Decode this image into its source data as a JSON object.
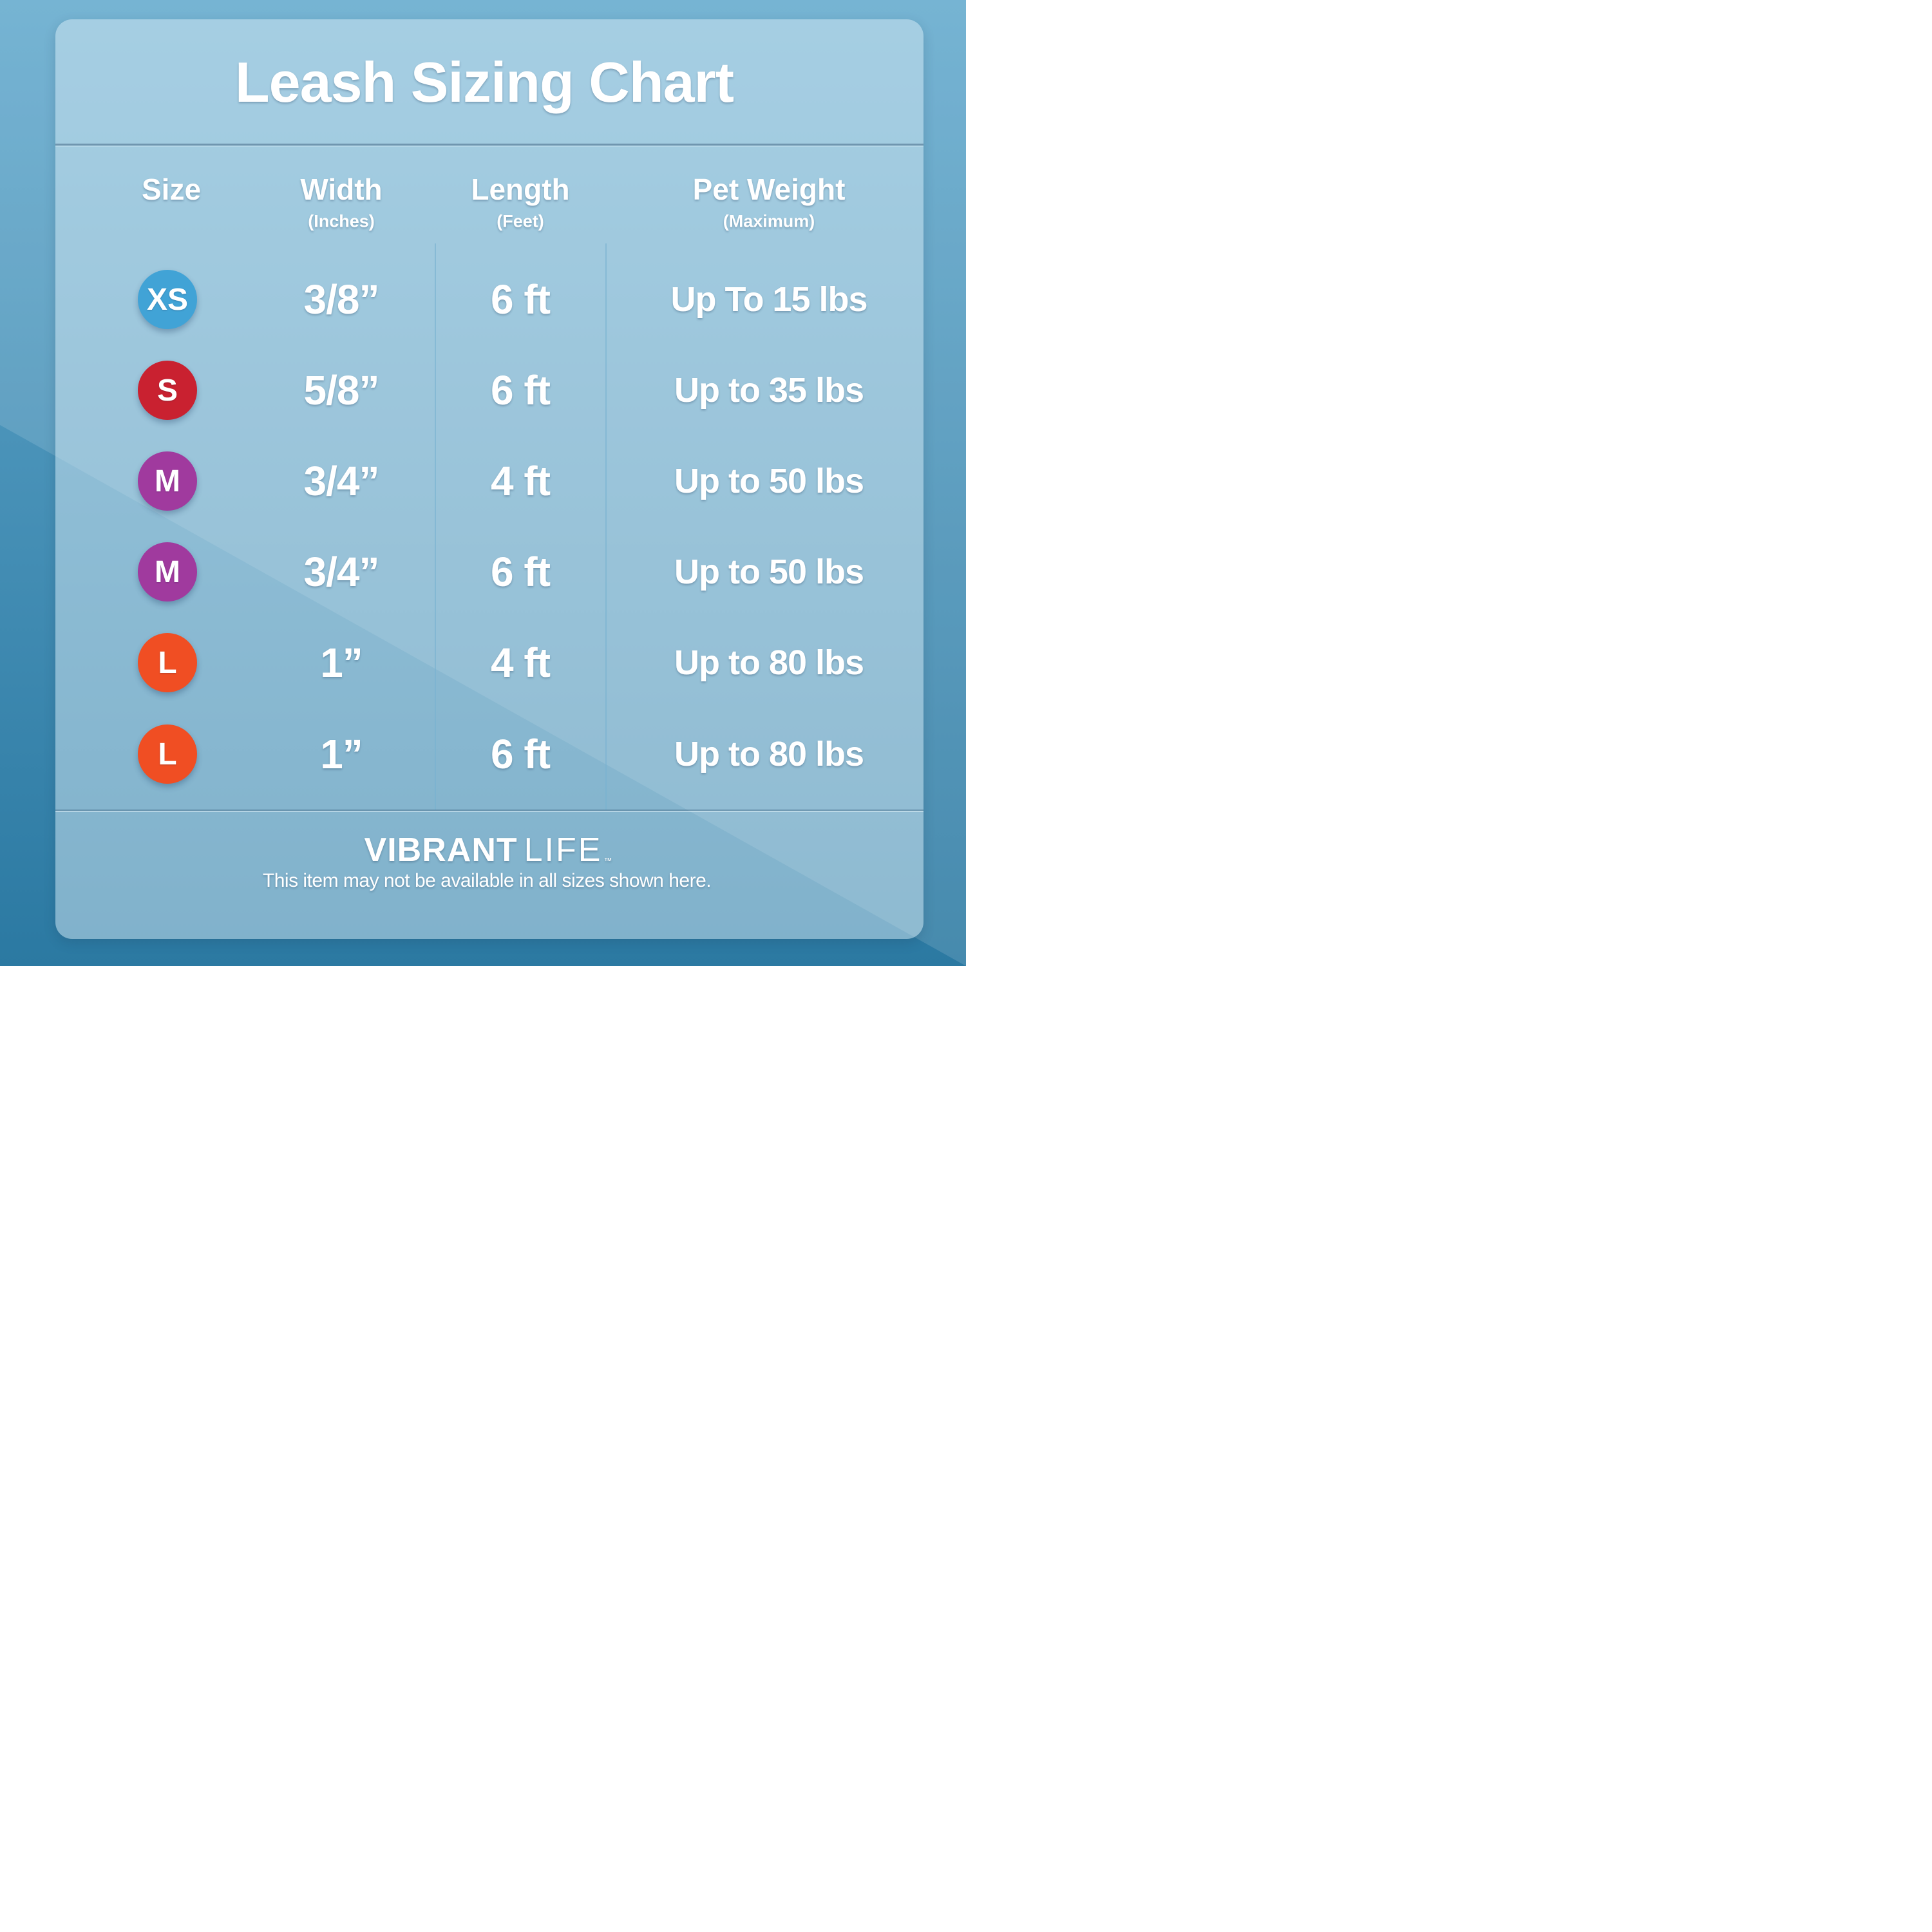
{
  "title": "Leash Sizing Chart",
  "columns": {
    "size": {
      "label": "Size",
      "sub": ""
    },
    "width": {
      "label": "Width",
      "sub": "(Inches)"
    },
    "length": {
      "label": "Length",
      "sub": "(Feet)"
    },
    "weight": {
      "label": "Pet Weight",
      "sub": "(Maximum)"
    }
  },
  "rows": [
    {
      "size": "XS",
      "badge_color": "#41a3d6",
      "width": "3/8”",
      "length": "6 ft",
      "weight": "Up To 15 lbs"
    },
    {
      "size": "S",
      "badge_color": "#c92130",
      "width": "5/8”",
      "length": "6 ft",
      "weight": "Up to 35 lbs"
    },
    {
      "size": "M",
      "badge_color": "#a03a9e",
      "width": "3/4”",
      "length": "4 ft",
      "weight": "Up to 50 lbs"
    },
    {
      "size": "M",
      "badge_color": "#a03a9e",
      "width": "3/4”",
      "length": "6 ft",
      "weight": "Up to 50 lbs"
    },
    {
      "size": "L",
      "badge_color": "#f04e23",
      "width": "1”",
      "length": "4 ft",
      "weight": "Up to 80 lbs"
    },
    {
      "size": "L",
      "badge_color": "#f04e23",
      "width": "1”",
      "length": "6 ft",
      "weight": "Up to 80 lbs"
    }
  ],
  "footer": {
    "brand_bold": "VIBRANT",
    "brand_light": "LIFE",
    "trademark": "™",
    "disclaimer": "This item may not be available in all sizes shown here."
  },
  "colors": {
    "background_top": "#62a9cd",
    "background_bottom": "#2b79a2",
    "panel_tint": "#d5eaf3",
    "badge_xs": "#41a3d6",
    "badge_s": "#c92130",
    "badge_m": "#a03a9e",
    "badge_l": "#f04e23",
    "text": "#ffffff"
  }
}
